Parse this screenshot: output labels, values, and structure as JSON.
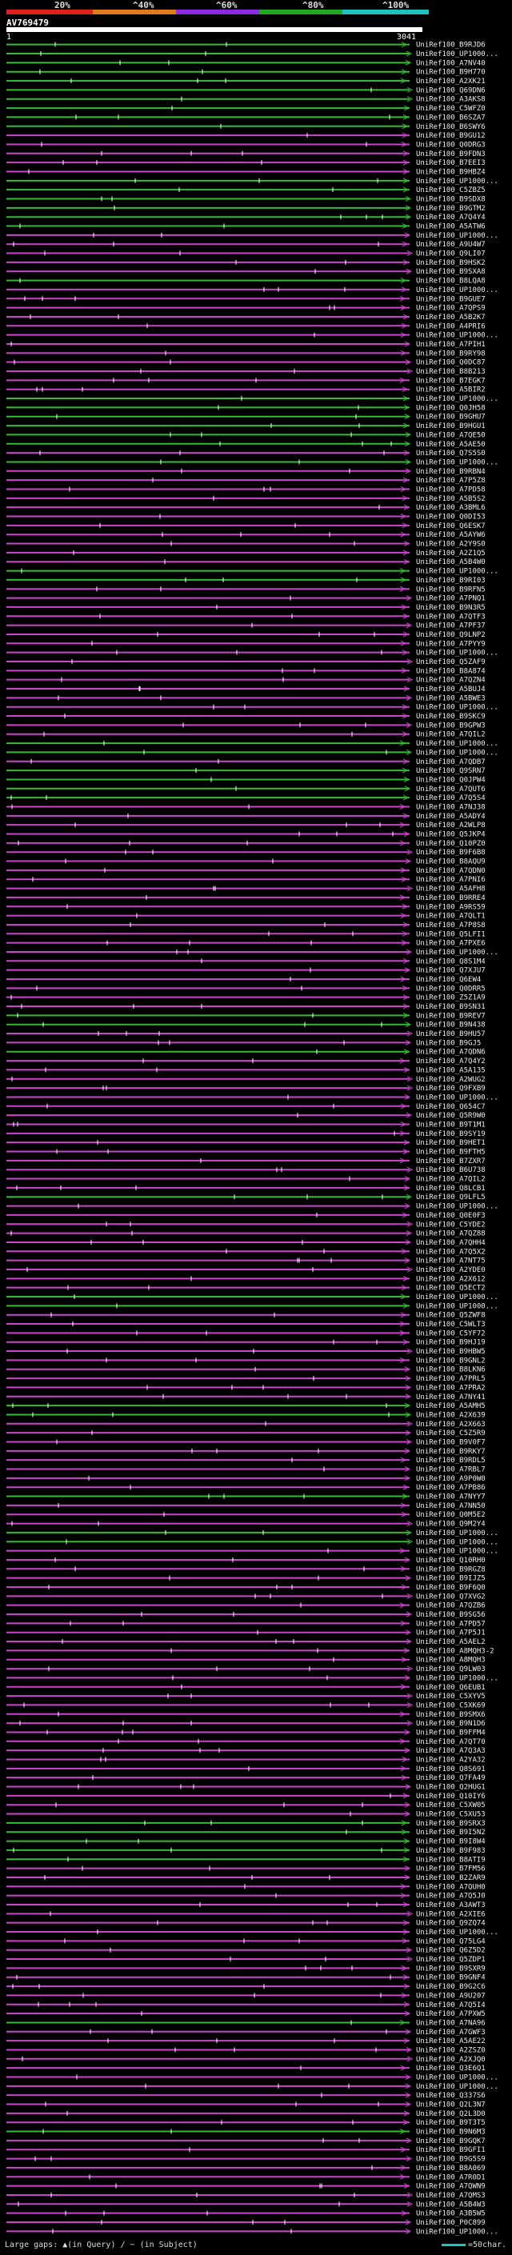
{
  "scale": {
    "ticks": [
      "20%",
      "^40%",
      "^60%",
      "^80%",
      "^100%"
    ],
    "colors": [
      "#e0201c",
      "#e07a1a",
      "#8a2be2",
      "#21a821",
      "#1ec4c4"
    ]
  },
  "query": {
    "name": "AV769479",
    "start": "1",
    "end": "3041"
  },
  "colors": {
    "green": "#33bb33",
    "magenta": "#cc44cc",
    "white": "#ffffff"
  },
  "hits": [
    {
      "label": "UniRef100_B9RJD6",
      "color": "green"
    },
    {
      "label": "UniRef100_UP1000...",
      "color": "green"
    },
    {
      "label": "UniRef100_A7NV40",
      "color": "green"
    },
    {
      "label": "UniRef100_B9H770",
      "color": "green"
    },
    {
      "label": "UniRef100_A2XK21",
      "color": "green"
    },
    {
      "label": "UniRef100_Q69DN6",
      "color": "green"
    },
    {
      "label": "UniRef100_A3AKS8",
      "color": "green"
    },
    {
      "label": "UniRef100_C5WFZ0",
      "color": "green"
    },
    {
      "label": "UniRef100_B6SZA7",
      "color": "green"
    },
    {
      "label": "UniRef100_B6SWY6",
      "color": "green"
    },
    {
      "label": "UniRef100_B9GU12",
      "color": "magenta"
    },
    {
      "label": "UniRef100_Q0DRG3",
      "color": "magenta"
    },
    {
      "label": "UniRef100_B9FDN3",
      "color": "magenta"
    },
    {
      "label": "UniRef100_B7EEI3",
      "color": "magenta"
    },
    {
      "label": "UniRef100_B9HBZ4",
      "color": "magenta"
    },
    {
      "label": "UniRef100_UP1000...",
      "color": "green"
    },
    {
      "label": "UniRef100_C5ZBZ5",
      "color": "green"
    },
    {
      "label": "UniRef100_B9SDX8",
      "color": "green"
    },
    {
      "label": "UniRef100_B9GTM2",
      "color": "green"
    },
    {
      "label": "UniRef100_A7Q4Y4",
      "color": "green"
    },
    {
      "label": "UniRef100_A5ATW6",
      "color": "green"
    },
    {
      "label": "UniRef100_UP1000...",
      "color": "magenta"
    },
    {
      "label": "UniRef100_A9U4W7",
      "color": "magenta"
    },
    {
      "label": "UniRef100_Q9LI07",
      "color": "magenta"
    },
    {
      "label": "UniRef100_B9HSK2",
      "color": "magenta"
    },
    {
      "label": "UniRef100_B9SXA8",
      "color": "magenta"
    },
    {
      "label": "UniRef100_B8LQA8",
      "color": "green"
    },
    {
      "label": "UniRef100_UP1000...",
      "color": "magenta"
    },
    {
      "label": "UniRef100_B9GUE7",
      "color": "magenta"
    },
    {
      "label": "UniRef100_A7QPS9",
      "color": "magenta"
    },
    {
      "label": "UniRef100_A5B2K7",
      "color": "magenta"
    },
    {
      "label": "UniRef100_A4PRI6",
      "color": "magenta"
    },
    {
      "label": "UniRef100_UP1000...",
      "color": "magenta"
    },
    {
      "label": "UniRef100_A7PIH1",
      "color": "magenta"
    },
    {
      "label": "UniRef100_B9RY98",
      "color": "magenta"
    },
    {
      "label": "UniRef100_Q0DC87",
      "color": "magenta"
    },
    {
      "label": "UniRef100_B8B213",
      "color": "magenta"
    },
    {
      "label": "UniRef100_B7EGK7",
      "color": "magenta"
    },
    {
      "label": "UniRef100_A5BIR2",
      "color": "magenta"
    },
    {
      "label": "UniRef100_UP1000...",
      "color": "green"
    },
    {
      "label": "UniRef100_Q0JH58",
      "color": "green"
    },
    {
      "label": "UniRef100_B9GHU7",
      "color": "green"
    },
    {
      "label": "UniRef100_B9HGU1",
      "color": "green"
    },
    {
      "label": "UniRef100_A7QE50",
      "color": "green"
    },
    {
      "label": "UniRef100_A5AE50",
      "color": "green"
    },
    {
      "label": "UniRef100_Q7S5S0",
      "color": "magenta"
    },
    {
      "label": "UniRef100_UP1000...",
      "color": "green"
    },
    {
      "label": "UniRef100_B9RBN4",
      "color": "magenta"
    },
    {
      "label": "UniRef100_A7P5Z8",
      "color": "magenta"
    },
    {
      "label": "UniRef100_A7PD58",
      "color": "magenta"
    },
    {
      "label": "UniRef100_A5B5S2",
      "color": "magenta"
    },
    {
      "label": "UniRef100_A3BML6",
      "color": "magenta"
    },
    {
      "label": "UniRef100_Q0DI53",
      "color": "magenta"
    },
    {
      "label": "UniRef100_Q6ESK7",
      "color": "magenta"
    },
    {
      "label": "UniRef100_A5AYW6",
      "color": "magenta"
    },
    {
      "label": "UniRef100_A2Y9S0",
      "color": "magenta"
    },
    {
      "label": "UniRef100_A2Z1Q5",
      "color": "magenta"
    },
    {
      "label": "UniRef100_A5B4W0",
      "color": "magenta"
    },
    {
      "label": "UniRef100_UP1000...",
      "color": "green"
    },
    {
      "label": "UniRef100_B9RI03",
      "color": "green"
    },
    {
      "label": "UniRef100_B9RFN5",
      "color": "magenta"
    },
    {
      "label": "UniRef100_A7PNQ1",
      "color": "magenta"
    },
    {
      "label": "UniRef100_B9N3R5",
      "color": "magenta"
    },
    {
      "label": "UniRef100_A7QTF3",
      "color": "magenta"
    },
    {
      "label": "UniRef100_A7PF37",
      "color": "magenta"
    },
    {
      "label": "UniRef100_Q9LNP2",
      "color": "magenta"
    },
    {
      "label": "UniRef100_A7PYY9",
      "color": "magenta"
    },
    {
      "label": "UniRef100_UP1000...",
      "color": "magenta"
    },
    {
      "label": "UniRef100_Q5ZAF9",
      "color": "magenta"
    },
    {
      "label": "UniRef100_B8A874",
      "color": "magenta"
    },
    {
      "label": "UniRef100_A7QZN4",
      "color": "magenta"
    },
    {
      "label": "UniRef100_A5BUJ4",
      "color": "magenta"
    },
    {
      "label": "UniRef100_A5BWE3",
      "color": "magenta"
    },
    {
      "label": "UniRef100_UP1000...",
      "color": "magenta"
    },
    {
      "label": "UniRef100_B9SKC9",
      "color": "magenta"
    },
    {
      "label": "UniRef100_B9GPW3",
      "color": "magenta"
    },
    {
      "label": "UniRef100_A7QIL2",
      "color": "magenta"
    },
    {
      "label": "UniRef100_UP1000...",
      "color": "green"
    },
    {
      "label": "UniRef100_UP1000...",
      "color": "green"
    },
    {
      "label": "UniRef100_A7QDB7",
      "color": "magenta"
    },
    {
      "label": "UniRef100_Q9SRN7",
      "color": "green"
    },
    {
      "label": "UniRef100_Q0JPW4",
      "color": "green"
    },
    {
      "label": "UniRef100_A7QUT6",
      "color": "green"
    },
    {
      "label": "UniRef100_A7Q5S4",
      "color": "green"
    },
    {
      "label": "UniRef100_A7NJ38",
      "color": "magenta"
    },
    {
      "label": "UniRef100_A5ADY4",
      "color": "magenta"
    },
    {
      "label": "UniRef100_A2WLP8",
      "color": "magenta"
    },
    {
      "label": "UniRef100_Q5JKP4",
      "color": "magenta"
    },
    {
      "label": "UniRef100_Q10PZ0",
      "color": "magenta"
    },
    {
      "label": "UniRef100_B9F6B8",
      "color": "magenta"
    },
    {
      "label": "UniRef100_B8AQU9",
      "color": "magenta"
    },
    {
      "label": "UniRef100_A7QDN0",
      "color": "magenta"
    },
    {
      "label": "UniRef100_A7PNI6",
      "color": "magenta"
    },
    {
      "label": "UniRef100_A5AFH8",
      "color": "magenta"
    },
    {
      "label": "UniRef100_B9RRE4",
      "color": "magenta"
    },
    {
      "label": "UniRef100_A9RS59",
      "color": "magenta"
    },
    {
      "label": "UniRef100_A7QLT1",
      "color": "magenta"
    },
    {
      "label": "UniRef100_A7P8S8",
      "color": "magenta"
    },
    {
      "label": "UniRef100_Q5LFI1",
      "color": "magenta"
    },
    {
      "label": "UniRef100_A7PXE6",
      "color": "magenta"
    },
    {
      "label": "UniRef100_UP1000...",
      "color": "magenta"
    },
    {
      "label": "UniRef100_Q8S1M4",
      "color": "magenta"
    },
    {
      "label": "UniRef100_Q7XJU7",
      "color": "magenta"
    },
    {
      "label": "UniRef100_Q6EW4",
      "color": "magenta"
    },
    {
      "label": "UniRef100_Q0DRR5",
      "color": "magenta"
    },
    {
      "label": "UniRef100_Z5Z1A9",
      "color": "magenta"
    },
    {
      "label": "UniRef100_B9SN31",
      "color": "magenta"
    },
    {
      "label": "UniRef100_B9REV7",
      "color": "green"
    },
    {
      "label": "UniRef100_B9N438",
      "color": "green"
    },
    {
      "label": "UniRef100_B9HU57",
      "color": "magenta"
    },
    {
      "label": "UniRef100_B9GJ5",
      "color": "magenta"
    },
    {
      "label": "UniRef100_A7QDN6",
      "color": "green"
    },
    {
      "label": "UniRef100_A7Q4Y2",
      "color": "magenta"
    },
    {
      "label": "UniRef100_A5A135",
      "color": "magenta"
    },
    {
      "label": "UniRef100_A2WUG2",
      "color": "magenta"
    },
    {
      "label": "UniRef100_Q9FXB9",
      "color": "magenta"
    },
    {
      "label": "UniRef100_UP1000...",
      "color": "magenta"
    },
    {
      "label": "UniRef100_Q654C7",
      "color": "magenta"
    },
    {
      "label": "UniRef100_Q5R9W0",
      "color": "magenta"
    },
    {
      "label": "UniRef100_B9T1M1",
      "color": "magenta"
    },
    {
      "label": "UniRef100_B9SY19",
      "color": "magenta"
    },
    {
      "label": "UniRef100_B9HET1",
      "color": "magenta"
    },
    {
      "label": "UniRef100_B9FTH5",
      "color": "magenta"
    },
    {
      "label": "UniRef100_B7ZXR7",
      "color": "magenta"
    },
    {
      "label": "UniRef100_B6U738",
      "color": "magenta"
    },
    {
      "label": "UniRef100_A7QIL2",
      "color": "magenta"
    },
    {
      "label": "UniRef100_Q8LCB1",
      "color": "magenta"
    },
    {
      "label": "UniRef100_Q9LFL5",
      "color": "green"
    },
    {
      "label": "UniRef100_UP1000...",
      "color": "magenta"
    },
    {
      "label": "UniRef100_Q0E0F3",
      "color": "magenta"
    },
    {
      "label": "UniRef100_C5YDE2",
      "color": "magenta"
    },
    {
      "label": "UniRef100_A7QZ88",
      "color": "magenta"
    },
    {
      "label": "UniRef100_A7QHH4",
      "color": "magenta"
    },
    {
      "label": "UniRef100_A7Q5X2",
      "color": "magenta"
    },
    {
      "label": "UniRef100_A7NT75",
      "color": "magenta"
    },
    {
      "label": "UniRef100_A2YDE0",
      "color": "magenta"
    },
    {
      "label": "UniRef100_A2X612",
      "color": "magenta"
    },
    {
      "label": "UniRef100_Q5ECT2",
      "color": "magenta"
    },
    {
      "label": "UniRef100_UP1000...",
      "color": "green"
    },
    {
      "label": "UniRef100_UP1000...",
      "color": "green"
    },
    {
      "label": "UniRef100_Q5ZWF8",
      "color": "magenta"
    },
    {
      "label": "UniRef100_C5WLT3",
      "color": "magenta"
    },
    {
      "label": "UniRef100_C5YF72",
      "color": "magenta"
    },
    {
      "label": "UniRef100_B9HJ19",
      "color": "magenta"
    },
    {
      "label": "UniRef100_B9HBW5",
      "color": "magenta"
    },
    {
      "label": "UniRef100_B9GNL2",
      "color": "magenta"
    },
    {
      "label": "UniRef100_B8LKN6",
      "color": "magenta"
    },
    {
      "label": "UniRef100_A7PRL5",
      "color": "magenta"
    },
    {
      "label": "UniRef100_A7PRA2",
      "color": "magenta"
    },
    {
      "label": "UniRef100_A7NY41",
      "color": "magenta"
    },
    {
      "label": "UniRef100_A5AMH5",
      "color": "green"
    },
    {
      "label": "UniRef100_A2X639",
      "color": "green"
    },
    {
      "label": "UniRef100_A2X663",
      "color": "magenta"
    },
    {
      "label": "UniRef100_C5Z5R9",
      "color": "magenta"
    },
    {
      "label": "UniRef100_B9V0F7",
      "color": "magenta"
    },
    {
      "label": "UniRef100_B9RKY7",
      "color": "magenta"
    },
    {
      "label": "UniRef100_B9RDL5",
      "color": "magenta"
    },
    {
      "label": "UniRef100_A7RBL7",
      "color": "magenta"
    },
    {
      "label": "UniRef100_A9P0W0",
      "color": "magenta"
    },
    {
      "label": "UniRef100_A7PB86",
      "color": "magenta"
    },
    {
      "label": "UniRef100_A7NYY7",
      "color": "green"
    },
    {
      "label": "UniRef100_A7NN50",
      "color": "magenta"
    },
    {
      "label": "UniRef100_Q0M5E2",
      "color": "magenta"
    },
    {
      "label": "UniRef100_Q9M2Y4",
      "color": "magenta"
    },
    {
      "label": "UniRef100_UP1000...",
      "color": "green"
    },
    {
      "label": "UniRef100_UP1000...",
      "color": "green"
    },
    {
      "label": "UniRef100_UP1000...",
      "color": "magenta"
    },
    {
      "label": "UniRef100_Q10RH0",
      "color": "magenta"
    },
    {
      "label": "UniRef100_B9RGZ8",
      "color": "magenta"
    },
    {
      "label": "UniRef100_B9IJZ5",
      "color": "magenta"
    },
    {
      "label": "UniRef100_B9F6Q0",
      "color": "magenta"
    },
    {
      "label": "UniRef100_Q7XVG2",
      "color": "magenta"
    },
    {
      "label": "UniRef100_A7QZB6",
      "color": "magenta"
    },
    {
      "label": "UniRef100_B9SG56",
      "color": "magenta"
    },
    {
      "label": "UniRef100_A7PD57",
      "color": "magenta"
    },
    {
      "label": "UniRef100_A7P5J1",
      "color": "magenta"
    },
    {
      "label": "UniRef100_A5AEL2",
      "color": "magenta"
    },
    {
      "label": "UniRef100_A8MQH3-2",
      "color": "magenta"
    },
    {
      "label": "UniRef100_A8MQH3",
      "color": "magenta"
    },
    {
      "label": "UniRef100_Q9LW03",
      "color": "magenta"
    },
    {
      "label": "UniRef100_UP1000...",
      "color": "magenta"
    },
    {
      "label": "UniRef100_Q6EUB1",
      "color": "magenta"
    },
    {
      "label": "UniRef100_C5XYV5",
      "color": "magenta"
    },
    {
      "label": "UniRef100_C5XK69",
      "color": "magenta"
    },
    {
      "label": "UniRef100_B9SMX6",
      "color": "magenta"
    },
    {
      "label": "UniRef100_B9N1D6",
      "color": "magenta"
    },
    {
      "label": "UniRef100_B9FFM4",
      "color": "magenta"
    },
    {
      "label": "UniRef100_A7QT70",
      "color": "magenta"
    },
    {
      "label": "UniRef100_A7Q3A3",
      "color": "magenta"
    },
    {
      "label": "UniRef100_A2YA32",
      "color": "magenta"
    },
    {
      "label": "UniRef100_Q8S691",
      "color": "magenta"
    },
    {
      "label": "UniRef100_Q7FA49",
      "color": "magenta"
    },
    {
      "label": "UniRef100_Q2HUG1",
      "color": "magenta"
    },
    {
      "label": "UniRef100_Q10IY6",
      "color": "magenta"
    },
    {
      "label": "UniRef100_C5XW05",
      "color": "magenta"
    },
    {
      "label": "UniRef100_C5XU53",
      "color": "magenta"
    },
    {
      "label": "UniRef100_B9SRX3",
      "color": "green"
    },
    {
      "label": "UniRef100_B9I5N2",
      "color": "green"
    },
    {
      "label": "UniRef100_B9I8W4",
      "color": "green"
    },
    {
      "label": "UniRef100_B9F983",
      "color": "green"
    },
    {
      "label": "UniRef100_B8ATI9",
      "color": "green"
    },
    {
      "label": "UniRef100_B7FM56",
      "color": "magenta"
    },
    {
      "label": "UniRef100_B2ZAR9",
      "color": "magenta"
    },
    {
      "label": "UniRef100_A7QUH0",
      "color": "magenta"
    },
    {
      "label": "UniRef100_A7Q5J0",
      "color": "magenta"
    },
    {
      "label": "UniRef100_A3AWT3",
      "color": "magenta"
    },
    {
      "label": "UniRef100_A2XIE6",
      "color": "magenta"
    },
    {
      "label": "UniRef100_Q9ZQ74",
      "color": "magenta"
    },
    {
      "label": "UniRef100_UP1000...",
      "color": "magenta"
    },
    {
      "label": "UniRef100_Q75LG4",
      "color": "magenta"
    },
    {
      "label": "UniRef100_Q6Z5D2",
      "color": "magenta"
    },
    {
      "label": "UniRef100_Q5ZDP1",
      "color": "magenta"
    },
    {
      "label": "UniRef100_B9SXR9",
      "color": "magenta"
    },
    {
      "label": "UniRef100_B9GNF4",
      "color": "magenta"
    },
    {
      "label": "UniRef100_B9G2C6",
      "color": "magenta"
    },
    {
      "label": "UniRef100_A9U207",
      "color": "magenta"
    },
    {
      "label": "UniRef100_A7Q5I4",
      "color": "magenta"
    },
    {
      "label": "UniRef100_A7PXW5",
      "color": "magenta"
    },
    {
      "label": "UniRef100_A7NA96",
      "color": "green"
    },
    {
      "label": "UniRef100_A7GWF3",
      "color": "magenta"
    },
    {
      "label": "UniRef100_A5AE22",
      "color": "magenta"
    },
    {
      "label": "UniRef100_A2ZSZ0",
      "color": "magenta"
    },
    {
      "label": "UniRef100_A2XJQ0",
      "color": "magenta"
    },
    {
      "label": "UniRef100_Q3E6Q1",
      "color": "magenta"
    },
    {
      "label": "UniRef100_UP1000...",
      "color": "magenta"
    },
    {
      "label": "UniRef100_UP1000...",
      "color": "magenta"
    },
    {
      "label": "UniRef100_Q337S6",
      "color": "magenta"
    },
    {
      "label": "UniRef100_Q2L3N7",
      "color": "magenta"
    },
    {
      "label": "UniRef100_Q2L3D0",
      "color": "magenta"
    },
    {
      "label": "UniRef100_B9T3T5",
      "color": "magenta"
    },
    {
      "label": "UniRef100_B9N6M3",
      "color": "green"
    },
    {
      "label": "UniRef100_B9GQK7",
      "color": "magenta"
    },
    {
      "label": "UniRef100_B9GFI1",
      "color": "magenta"
    },
    {
      "label": "UniRef100_B9G5S9",
      "color": "magenta"
    },
    {
      "label": "UniRef100_B8A069",
      "color": "magenta"
    },
    {
      "label": "UniRef100_A7R0D1",
      "color": "magenta"
    },
    {
      "label": "UniRef100_A7QWN9",
      "color": "magenta"
    },
    {
      "label": "UniRef100_A7QMS3",
      "color": "magenta"
    },
    {
      "label": "UniRef100_A5B4W3",
      "color": "magenta"
    },
    {
      "label": "UniRef100_A3B5W5",
      "color": "magenta"
    },
    {
      "label": "UniRef100_P0C899",
      "color": "magenta"
    },
    {
      "label": "UniRef100_UP1000...",
      "color": "magenta"
    }
  ],
  "legend": {
    "text": "Large gaps: ▲(in Query) / ~ (in Subject)",
    "scale_text": "=50char."
  }
}
